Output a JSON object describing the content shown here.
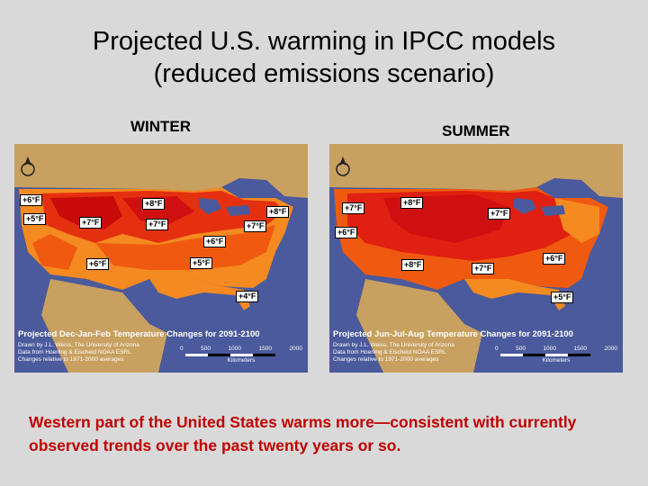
{
  "slide": {
    "title_line1": "Projected U.S. warming in IPCC models",
    "title_line2": "(reduced emissions scenario)",
    "caption": "Western part of the United States warms more—consistent with currently observed trends over the past twenty years or so."
  },
  "winter": {
    "label": "WINTER",
    "map_title": "Projected Dec-Jan-Feb Temperature Changes for 2091-2100",
    "credit_lines": [
      "Drawn by J.L. Weiss, The University of Arizona",
      "Data from Hoerling & Eischeid NOAA ESRL",
      "Changes relative to 1971-2000 averages"
    ],
    "scale_ticks": [
      "0",
      "500",
      "1000",
      "1500",
      "2000"
    ],
    "scale_unit": "Kilometers",
    "tags": [
      "+6°F",
      "+8°F",
      "+5°F",
      "+7°F",
      "+7°F",
      "+8°F",
      "+7°F",
      "+6°F",
      "+6°F",
      "+5°F",
      "+4°F"
    ]
  },
  "summer": {
    "label": "SUMMER",
    "map_title": "Projected Jun-Jul-Aug Temperature Changes for 2091-2100",
    "credit_lines": [
      "Drawn by J.L. Weiss, The University of Arizona",
      "Data from Hoerling & Eischeid NOAA ESRL",
      "Changes relative to 1971-2000 averages"
    ],
    "scale_ticks": [
      "0",
      "500",
      "1000",
      "1500",
      "2000"
    ],
    "scale_unit": "Kilometers",
    "tags": [
      "+7°F",
      "+8°F",
      "+7°F",
      "+6°F",
      "+8°F",
      "+7°F",
      "+6°F",
      "+5°F"
    ]
  },
  "colors": {
    "ocean": "#4a5a9c",
    "land": "#c8a060",
    "deep_red": "#d01010",
    "red": "#e53010",
    "orange_red": "#f05a10",
    "orange": "#f58a20",
    "caption": "#c00000"
  }
}
